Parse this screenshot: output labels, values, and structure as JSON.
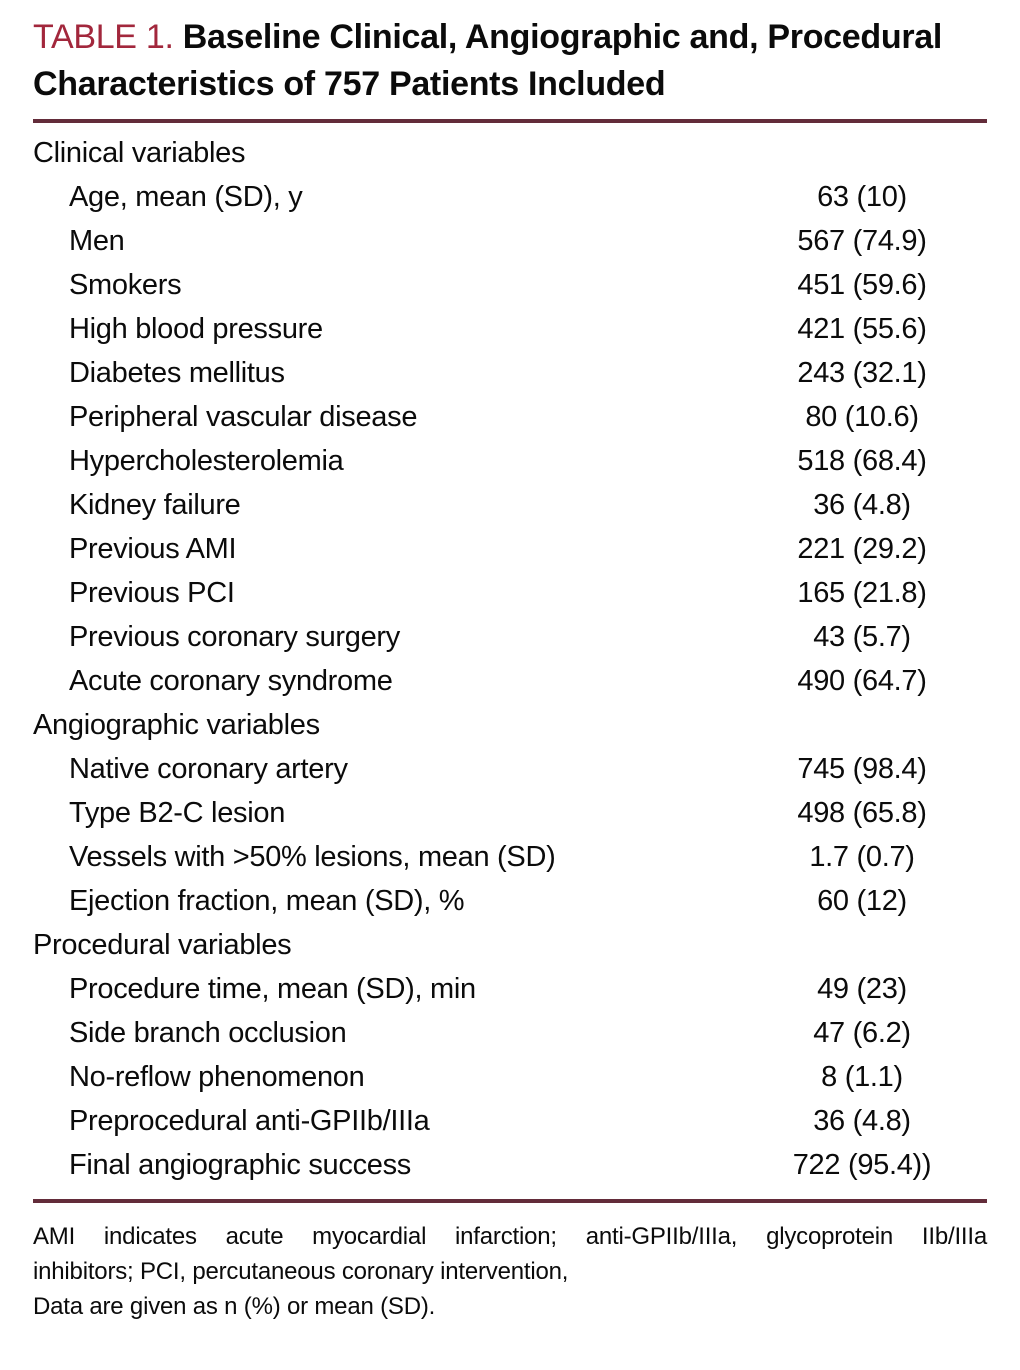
{
  "colors": {
    "table_label_red": "#A2273C",
    "rule_maroon": "#632C3A"
  },
  "table": {
    "label": "TABLE 1.",
    "title": "Baseline Clinical, Angiographic and, Procedural Characteristics of 757 Patients Included",
    "sections": [
      {
        "header": "Clinical variables",
        "rows": [
          {
            "label": "Age, mean (SD), y",
            "value": "63 (10)"
          },
          {
            "label": "Men",
            "value": "567 (74.9)"
          },
          {
            "label": "Smokers",
            "value": "451 (59.6)"
          },
          {
            "label": "High blood pressure",
            "value": "421 (55.6)"
          },
          {
            "label": "Diabetes mellitus",
            "value": "243 (32.1)"
          },
          {
            "label": "Peripheral vascular disease",
            "value": "80 (10.6)"
          },
          {
            "label": "Hypercholesterolemia",
            "value": "518 (68.4)"
          },
          {
            "label": "Kidney failure",
            "value": "36 (4.8)"
          },
          {
            "label": "Previous AMI",
            "value": "221 (29.2)"
          },
          {
            "label": "Previous PCI",
            "value": "165 (21.8)"
          },
          {
            "label": "Previous coronary surgery",
            "value": "43 (5.7)"
          },
          {
            "label": "Acute coronary syndrome",
            "value": "490 (64.7)"
          }
        ]
      },
      {
        "header": "Angiographic variables",
        "rows": [
          {
            "label": "Native coronary artery",
            "value": "745 (98.4)"
          },
          {
            "label": "Type B2-C lesion",
            "value": "498 (65.8)"
          },
          {
            "label": "Vessels with >50% lesions, mean (SD)",
            "value": "1.7 (0.7)"
          },
          {
            "label": "Ejection fraction, mean (SD), %",
            "value": "60 (12)"
          }
        ]
      },
      {
        "header": "Procedural variables",
        "rows": [
          {
            "label": "Procedure time, mean (SD), min",
            "value": "49 (23)"
          },
          {
            "label": "Side branch occlusion",
            "value": "47 (6.2)"
          },
          {
            "label": "No-reflow phenomenon",
            "value": "8 (1.1)"
          },
          {
            "label": "Preprocedural anti-GPIIb/IIIa",
            "value": "36 (4.8)"
          },
          {
            "label": "Final angiographic success",
            "value": "722 (95.4))"
          }
        ]
      }
    ]
  },
  "footnote": {
    "lines": [
      "AMI indicates acute myocardial infarction; anti-GPIIb/IIIa, glycoprotein IIb/IIIa",
      "inhibitors; PCI, percutaneous coronary intervention,",
      "Data are given as n (%) or mean (SD)."
    ]
  }
}
